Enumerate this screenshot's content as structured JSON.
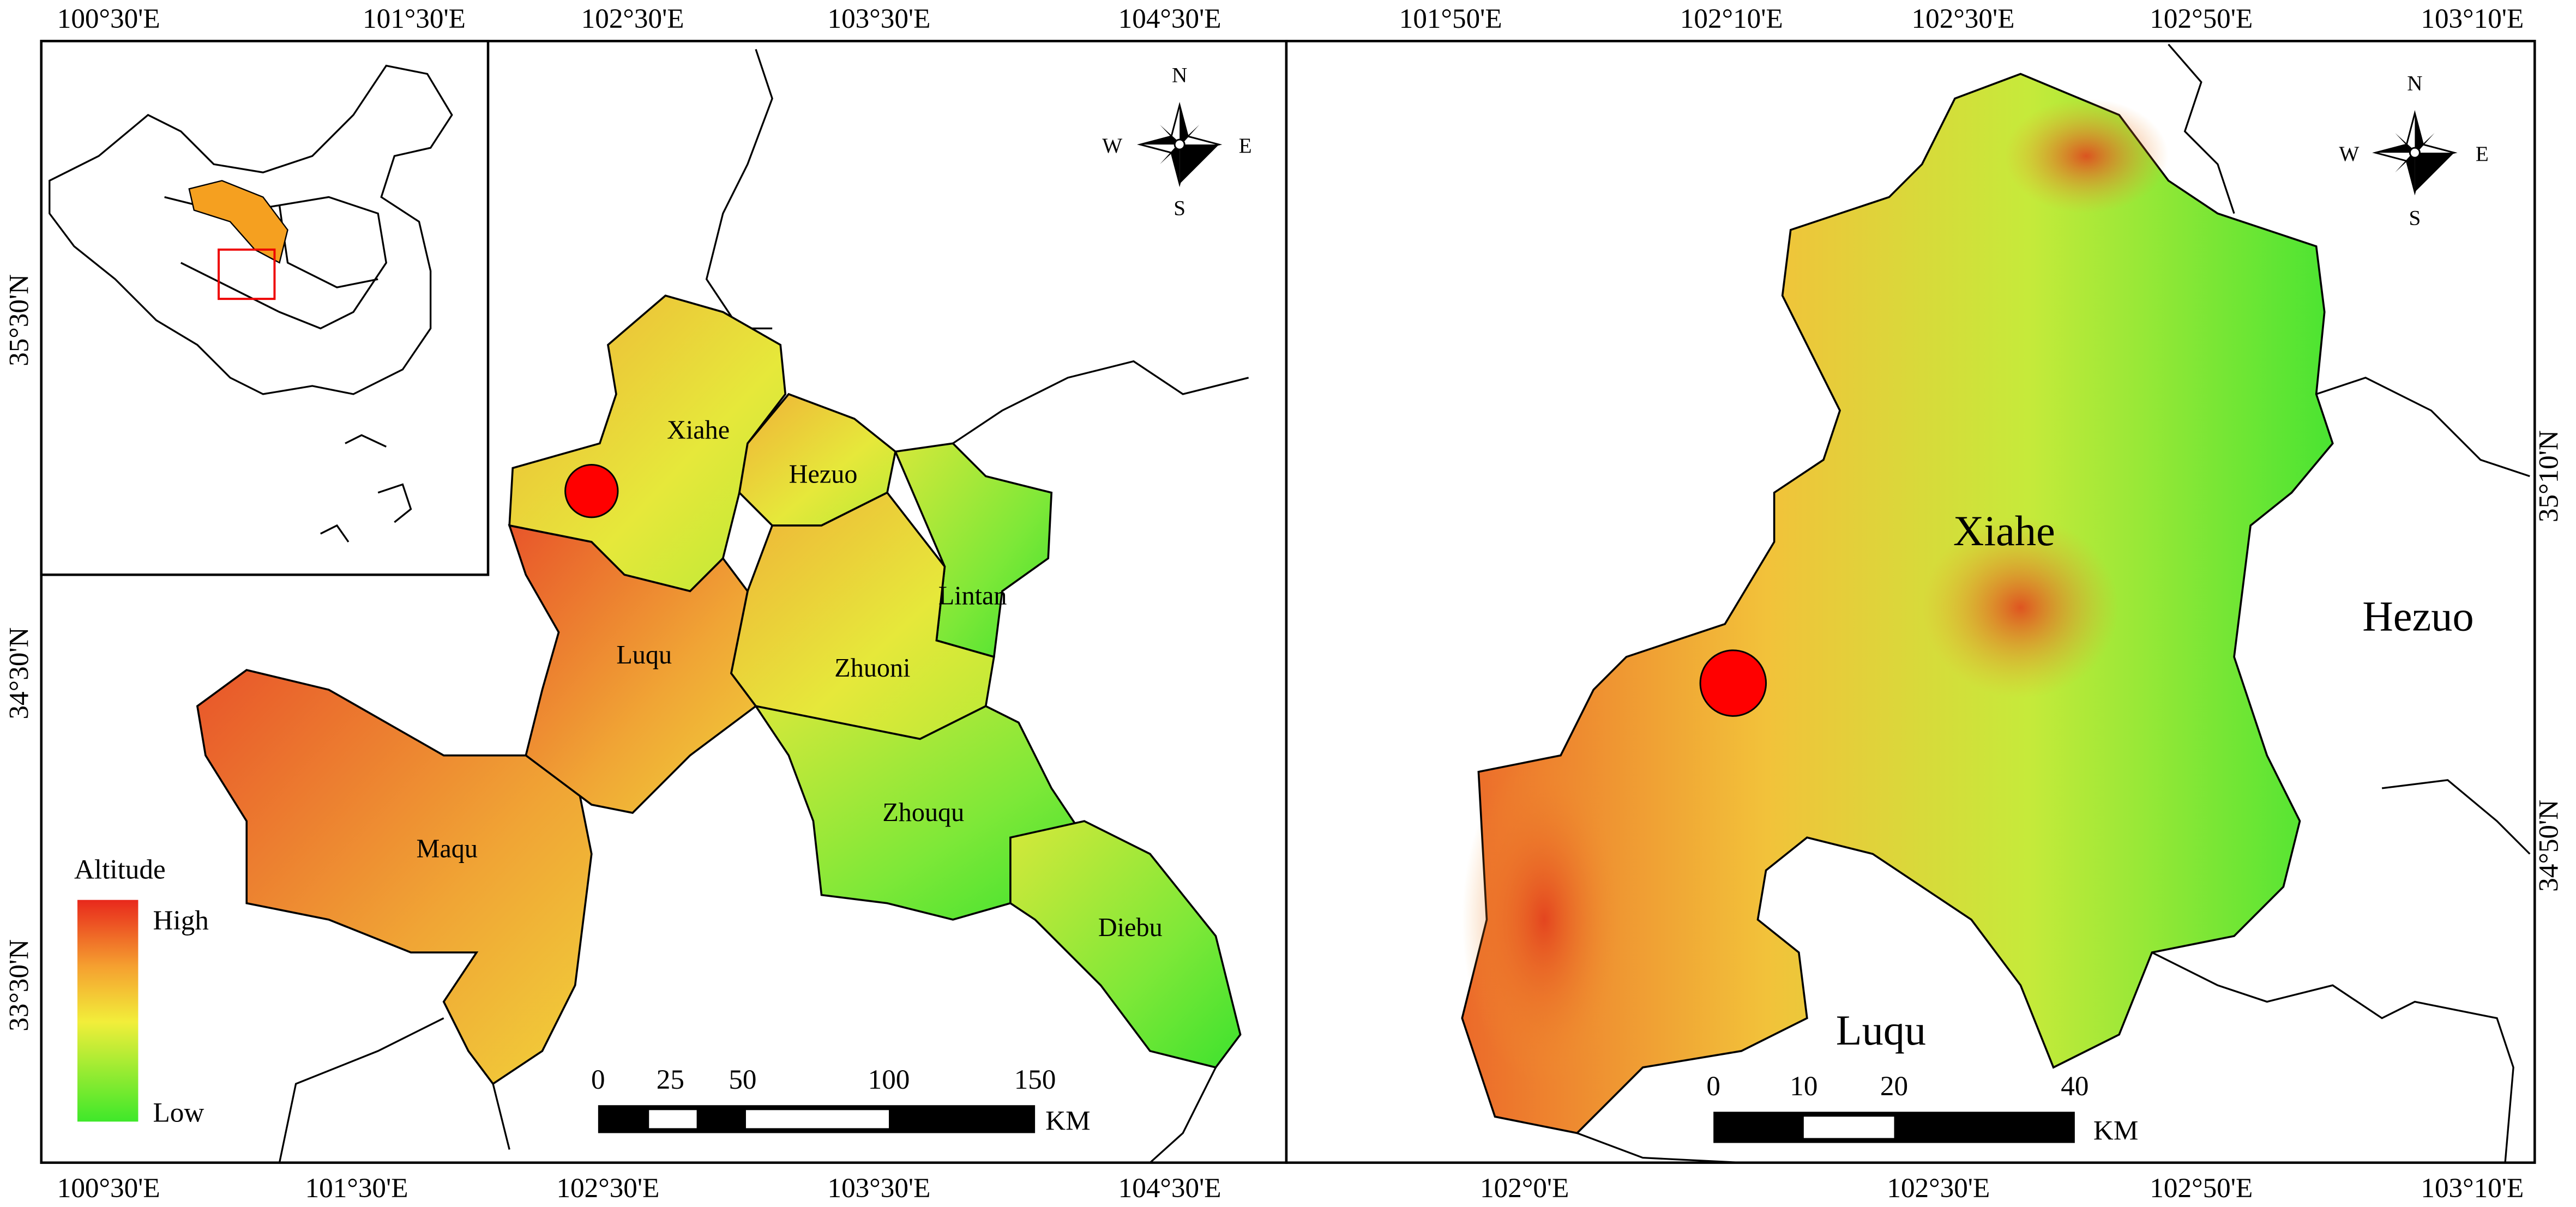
{
  "left_map": {
    "lon_labels_top": [
      "100°30'E",
      "101°30'E",
      "102°30'E",
      "103°30'E",
      "104°30'E"
    ],
    "lon_labels_bottom": [
      "100°30'E",
      "101°30'E",
      "102°30'E",
      "103°30'E",
      "104°30'E"
    ],
    "lat_labels": [
      "35°30'N",
      "34°30'N",
      "33°30'N"
    ],
    "compass": {
      "n": "N",
      "e": "E",
      "s": "S",
      "w": "W"
    },
    "regions": [
      "Xiahe",
      "Hezuo",
      "Lintan",
      "Zhuoni",
      "Luqu",
      "Maqu",
      "Zhouqu",
      "Diebu"
    ],
    "legend": {
      "title": "Altitude",
      "high": "High",
      "low": "Low"
    },
    "scale_bar": {
      "labels": [
        0,
        25,
        50,
        100,
        150
      ],
      "unit": "KM"
    }
  },
  "right_map": {
    "lon_labels_top": [
      "101°50'E",
      "102°10'E",
      "102°30'E",
      "102°50'E",
      "103°10'E"
    ],
    "lon_labels_bottom": [
      "102°0'E",
      "102°30'E",
      "102°50'E",
      "103°10'E"
    ],
    "lat_labels": [
      "35°10'N",
      "34°50'N"
    ],
    "compass": {
      "n": "N",
      "e": "E",
      "s": "S",
      "w": "W"
    },
    "regions": [
      "Xiahe",
      "Hezuo",
      "Luqu"
    ],
    "scale_bar": {
      "labels": [
        0,
        10,
        20,
        40
      ],
      "unit": "KM"
    }
  }
}
